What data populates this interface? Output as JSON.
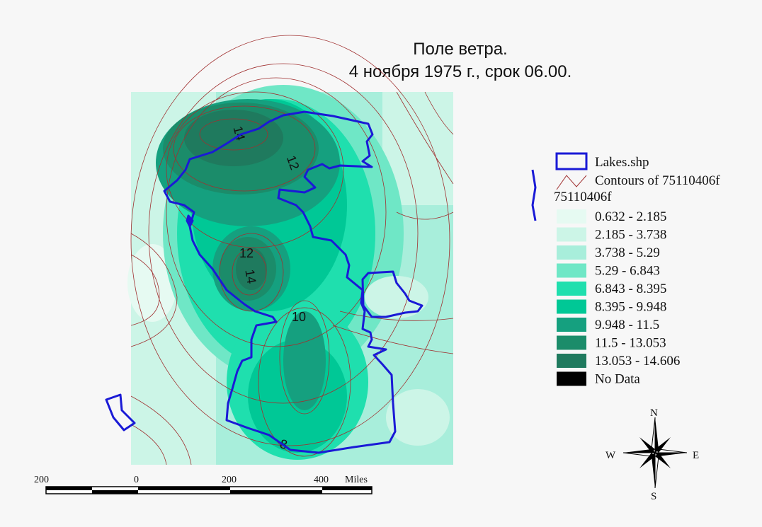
{
  "title": {
    "line1": "Поле ветра.",
    "line2": "4 ноября 1975 г., срок 06.00."
  },
  "legend": {
    "lakes_label": "Lakes.shp",
    "contours_label": "Contours of 75110406f",
    "grid_label": "75110406f",
    "classes": [
      {
        "label": "0.632 - 2.185",
        "color": "#e6faf2"
      },
      {
        "label": "2.185 - 3.738",
        "color": "#ccf5e7"
      },
      {
        "label": "3.738 - 5.29",
        "color": "#a8eedb"
      },
      {
        "label": "5.29 - 6.843",
        "color": "#6fe7c6"
      },
      {
        "label": "6.843 - 8.395",
        "color": "#1fdfae"
      },
      {
        "label": "8.395 - 9.948",
        "color": "#00c896"
      },
      {
        "label": "9.948 - 11.5",
        "color": "#15a07f"
      },
      {
        "label": "11.5 - 13.053",
        "color": "#1b8c6a"
      },
      {
        "label": "13.053 - 14.606",
        "color": "#1f7a5e"
      },
      {
        "label": "No Data",
        "color": "#000000"
      }
    ]
  },
  "contour_labels": [
    "14",
    "12",
    "12",
    "14",
    "10",
    "8"
  ],
  "scale_bar": {
    "ticks": [
      "200",
      "0",
      "200",
      "400"
    ],
    "unit": "Miles"
  },
  "compass": {
    "n": "N",
    "s": "S",
    "e": "E",
    "w": "W"
  },
  "colors": {
    "lake_outline": "#1a1ad6",
    "contour_line": "#a03030"
  }
}
